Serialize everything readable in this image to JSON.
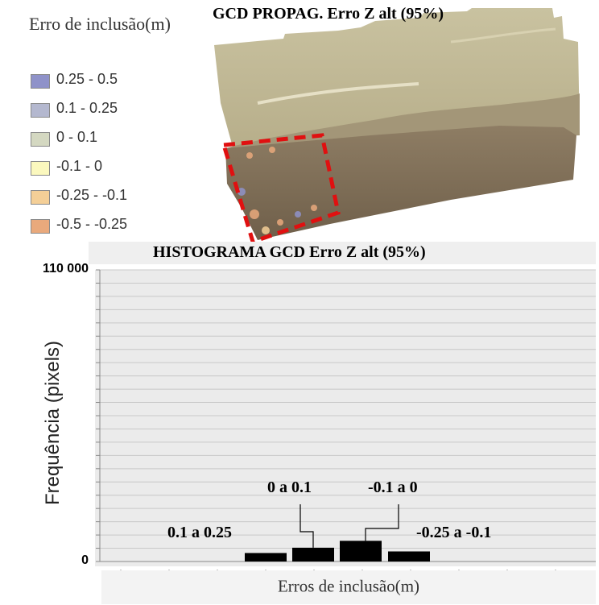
{
  "legend": {
    "title": "Erro de inclusão(m)",
    "items": [
      {
        "label": "0.25 - 0.5",
        "color": "#8f92c9"
      },
      {
        "label": "0.1 - 0.25",
        "color": "#b4b8cf"
      },
      {
        "label": "0 - 0.1",
        "color": "#d4d8c1"
      },
      {
        "label": "-0.1 - 0",
        "color": "#fbf8be"
      },
      {
        "label": "-0.25 - -0.1",
        "color": "#f4cf97"
      },
      {
        "label": "-0.5 - -0.25",
        "color": "#e9a97c"
      }
    ]
  },
  "map": {
    "title": "GCD PROPAG. Erro Z alt (95%)",
    "highlight_color": "#e01010"
  },
  "chart_data": {
    "type": "bar",
    "title": "HISTOGRAMA GCD Erro Z alt (95%)",
    "xlabel": "Erros de inclusão(m)",
    "ylabel": "Frequência (pixels)",
    "ylim": [
      0,
      110000
    ],
    "yticks": [
      "0",
      "110 000"
    ],
    "grid": true,
    "categories": [
      "0.1 a 0.25",
      "0 a 0.1",
      "-0.1 a 0",
      "-0.25 a -0.1"
    ],
    "values": [
      3200,
      5200,
      7800,
      3800
    ],
    "bar_color": "#000000"
  }
}
